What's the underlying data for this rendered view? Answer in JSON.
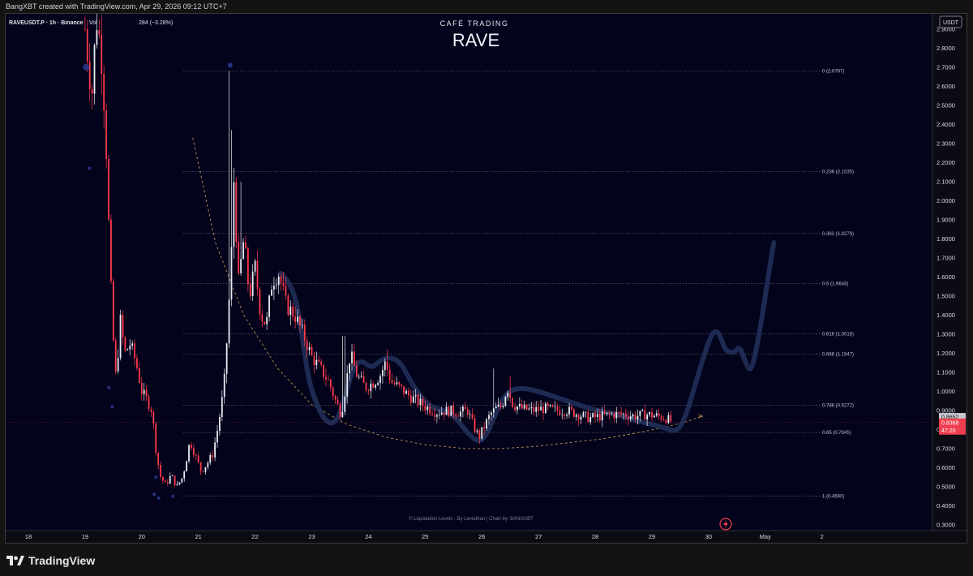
{
  "caption": "BangXBT created with TradingView.com, Apr 29, 2026 09:12 UTC+7",
  "header": {
    "symbol_line": "RAVEUSDT.P · 1h · Binance",
    "vol_label": "Vol",
    "change_tail": "284 (−3.28%)"
  },
  "overlay": {
    "brand": "CAFÉ TRADING",
    "ticker": "RAVE"
  },
  "currency_button": "USDT",
  "credit": "© Liquidation Levels - By Leviathan | Chart by: BANGXBT",
  "footer_brand": "TradingView",
  "colors": {
    "background": "#03031c",
    "up_candle": "#e9ecf2",
    "down_candle": "#ff3b4b",
    "projection": "#1f2c55",
    "fib_lines": "#6f7382",
    "curve": "#c9a34a",
    "last_price_bg": "#ef3e4f",
    "prev_price_bg": "#c8cad1"
  },
  "chart_data": {
    "type": "candlestick",
    "ylim": [
      0.27,
      2.98
    ],
    "x_domain_days": [
      17.6,
      33.95
    ],
    "x_axis_labels": [
      {
        "day": 18,
        "label": "18"
      },
      {
        "day": 19,
        "label": "19"
      },
      {
        "day": 20,
        "label": "20"
      },
      {
        "day": 21,
        "label": "21"
      },
      {
        "day": 22,
        "label": "22"
      },
      {
        "day": 23,
        "label": "23"
      },
      {
        "day": 24,
        "label": "24"
      },
      {
        "day": 25,
        "label": "25"
      },
      {
        "day": 26,
        "label": "26"
      },
      {
        "day": 27,
        "label": "27"
      },
      {
        "day": 28,
        "label": "28"
      },
      {
        "day": 29,
        "label": "29"
      },
      {
        "day": 30,
        "label": "30"
      },
      {
        "day": 31,
        "label": "May"
      },
      {
        "day": 32,
        "label": "2"
      }
    ],
    "y_axis_labels": [
      "0.3000",
      "0.4000",
      "0.5000",
      "0.6000",
      "0.7000",
      "0.8000",
      "0.9000",
      "1.0000",
      "1.1000",
      "1.2000",
      "1.3000",
      "1.4000",
      "1.5000",
      "1.6000",
      "1.7000",
      "1.8000",
      "1.9000",
      "2.0000",
      "2.1000",
      "2.2000",
      "2.3000",
      "2.4000",
      "2.5000",
      "2.6000",
      "2.7000",
      "2.8000",
      "2.9000"
    ],
    "fib_levels": [
      {
        "value": 2.6797,
        "label": "0 (2.6797)"
      },
      {
        "value": 2.1535,
        "label": "0.236 (2.1535)"
      },
      {
        "value": 1.8279,
        "label": "0.382 (1.8279)"
      },
      {
        "value": 1.5648,
        "label": "0.5 (1.5648)"
      },
      {
        "value": 1.3018,
        "label": "0.618 (1.3018)"
      },
      {
        "value": 1.1947,
        "label": "0.666 (1.1947)"
      },
      {
        "value": 0.9272,
        "label": "0.786 (0.9272)"
      },
      {
        "value": 0.7845,
        "label": "0.85 (0.7845)"
      },
      {
        "value": 0.45,
        "label": "1 (0.4500)"
      }
    ],
    "price_tags": [
      {
        "value": 0.8652,
        "label": "0.8652",
        "kind": "prev"
      },
      {
        "value": 0.8368,
        "label": "0.8368",
        "kind": "last",
        "countdown": "47:20"
      }
    ],
    "price_anchors": [
      [
        19.0,
        2.9
      ],
      [
        19.05,
        2.75
      ],
      [
        19.12,
        2.55
      ],
      [
        19.2,
        2.96
      ],
      [
        19.28,
        2.8
      ],
      [
        19.36,
        2.4
      ],
      [
        19.42,
        1.85
      ],
      [
        19.48,
        1.35
      ],
      [
        19.55,
        1.05
      ],
      [
        19.62,
        1.38
      ],
      [
        19.7,
        1.2
      ],
      [
        19.8,
        1.25
      ],
      [
        19.9,
        1.15
      ],
      [
        20.0,
        1.0
      ],
      [
        20.1,
        0.95
      ],
      [
        20.18,
        0.9
      ],
      [
        20.25,
        0.7
      ],
      [
        20.32,
        0.56
      ],
      [
        20.42,
        0.51
      ],
      [
        20.52,
        0.56
      ],
      [
        20.62,
        0.5
      ],
      [
        20.72,
        0.55
      ],
      [
        20.78,
        0.63
      ],
      [
        20.85,
        0.74
      ],
      [
        20.95,
        0.66
      ],
      [
        21.05,
        0.58
      ],
      [
        21.15,
        0.62
      ],
      [
        21.25,
        0.67
      ],
      [
        21.35,
        0.82
      ],
      [
        21.45,
        1.02
      ],
      [
        21.52,
        1.35
      ],
      [
        21.58,
        1.7
      ],
      [
        21.63,
        2.15
      ],
      [
        21.7,
        1.55
      ],
      [
        21.8,
        1.8
      ],
      [
        21.9,
        1.5
      ],
      [
        22.0,
        1.65
      ],
      [
        22.1,
        1.4
      ],
      [
        22.2,
        1.35
      ],
      [
        22.3,
        1.58
      ],
      [
        22.42,
        1.62
      ],
      [
        22.55,
        1.45
      ],
      [
        22.7,
        1.4
      ],
      [
        22.85,
        1.3
      ],
      [
        23.0,
        1.18
      ],
      [
        23.15,
        1.12
      ],
      [
        23.3,
        1.05
      ],
      [
        23.42,
        0.95
      ],
      [
        23.52,
        0.88
      ],
      [
        23.6,
        1.03
      ],
      [
        23.68,
        1.2
      ],
      [
        23.8,
        1.08
      ],
      [
        23.95,
        1.02
      ],
      [
        24.1,
        1.05
      ],
      [
        24.2,
        1.08
      ],
      [
        24.3,
        1.15
      ],
      [
        24.4,
        1.05
      ],
      [
        24.55,
        1.02
      ],
      [
        24.7,
        0.98
      ],
      [
        24.85,
        0.95
      ],
      [
        25.0,
        0.92
      ],
      [
        25.2,
        0.89
      ],
      [
        25.4,
        0.9
      ],
      [
        25.6,
        0.89
      ],
      [
        25.75,
        0.9
      ],
      [
        25.85,
        0.82
      ],
      [
        25.95,
        0.76
      ],
      [
        26.05,
        0.82
      ],
      [
        26.15,
        0.88
      ],
      [
        26.25,
        0.91
      ],
      [
        26.35,
        0.92
      ],
      [
        26.45,
        1.02
      ],
      [
        26.55,
        0.93
      ],
      [
        26.7,
        0.91
      ],
      [
        26.9,
        0.9
      ],
      [
        27.1,
        0.91
      ],
      [
        27.3,
        0.9
      ],
      [
        27.5,
        0.9
      ],
      [
        27.7,
        0.88
      ],
      [
        27.9,
        0.86
      ],
      [
        28.1,
        0.87
      ],
      [
        28.3,
        0.88
      ],
      [
        28.5,
        0.88
      ],
      [
        28.7,
        0.87
      ],
      [
        28.9,
        0.88
      ],
      [
        29.1,
        0.87
      ],
      [
        29.25,
        0.86
      ],
      [
        29.35,
        0.84
      ]
    ],
    "wick_spikes": [
      {
        "day": 19.2,
        "high": 2.98
      },
      {
        "day": 21.55,
        "high": 2.68
      },
      {
        "day": 21.6,
        "high": 2.37
      },
      {
        "day": 21.75,
        "high": 2.1
      },
      {
        "day": 23.56,
        "high": 1.29
      },
      {
        "day": 24.32,
        "high": 1.22
      },
      {
        "day": 26.2,
        "high": 1.12
      },
      {
        "day": 26.5,
        "high": 1.08
      }
    ],
    "projection_path": [
      [
        22.45,
        1.62
      ],
      [
        22.6,
        1.58
      ],
      [
        22.75,
        1.45
      ],
      [
        22.85,
        1.25
      ],
      [
        22.95,
        1.05
      ],
      [
        23.1,
        0.92
      ],
      [
        23.25,
        0.84
      ],
      [
        23.4,
        0.83
      ],
      [
        23.55,
        0.92
      ],
      [
        23.7,
        1.1
      ],
      [
        23.85,
        1.17
      ],
      [
        24.05,
        1.12
      ],
      [
        24.2,
        1.16
      ],
      [
        24.35,
        1.18
      ],
      [
        24.55,
        1.16
      ],
      [
        24.75,
        1.05
      ],
      [
        24.95,
        0.96
      ],
      [
        25.15,
        0.91
      ],
      [
        25.35,
        0.9
      ],
      [
        25.55,
        0.86
      ],
      [
        25.75,
        0.78
      ],
      [
        25.95,
        0.73
      ],
      [
        26.1,
        0.78
      ],
      [
        26.25,
        0.89
      ],
      [
        26.45,
        1.0
      ],
      [
        26.7,
        1.02
      ],
      [
        27.0,
        1.0
      ],
      [
        27.3,
        0.97
      ],
      [
        27.6,
        0.94
      ],
      [
        27.9,
        0.91
      ],
      [
        28.2,
        0.89
      ],
      [
        28.5,
        0.87
      ],
      [
        28.8,
        0.84
      ],
      [
        29.1,
        0.82
      ],
      [
        29.3,
        0.8
      ],
      [
        29.45,
        0.79
      ],
      [
        29.6,
        0.87
      ],
      [
        29.75,
        1.02
      ],
      [
        29.9,
        1.17
      ],
      [
        30.0,
        1.26
      ],
      [
        30.1,
        1.32
      ],
      [
        30.2,
        1.3
      ],
      [
        30.3,
        1.21
      ],
      [
        30.45,
        1.2
      ],
      [
        30.55,
        1.24
      ],
      [
        30.65,
        1.15
      ],
      [
        30.75,
        1.1
      ],
      [
        30.85,
        1.23
      ],
      [
        30.95,
        1.4
      ],
      [
        31.05,
        1.6
      ],
      [
        31.15,
        1.78
      ]
    ],
    "curve_points": [
      [
        20.9,
        2.33
      ],
      [
        21.3,
        1.78
      ],
      [
        21.8,
        1.4
      ],
      [
        22.4,
        1.12
      ],
      [
        23.0,
        0.93
      ],
      [
        23.6,
        0.83
      ],
      [
        24.3,
        0.76
      ],
      [
        25.0,
        0.72
      ],
      [
        25.7,
        0.7
      ],
      [
        26.3,
        0.7
      ],
      [
        26.9,
        0.71
      ],
      [
        27.5,
        0.73
      ],
      [
        28.1,
        0.75
      ],
      [
        28.7,
        0.78
      ],
      [
        29.2,
        0.81
      ],
      [
        29.6,
        0.84
      ],
      [
        29.88,
        0.87
      ]
    ],
    "markers": [
      {
        "day": 19.02,
        "value": 2.7,
        "r": 4
      },
      {
        "day": 19.08,
        "value": 2.17,
        "r": 2
      },
      {
        "day": 19.42,
        "value": 1.02,
        "r": 2
      },
      {
        "day": 19.48,
        "value": 0.92,
        "r": 2
      },
      {
        "day": 20.22,
        "value": 0.46,
        "r": 2
      },
      {
        "day": 20.3,
        "value": 0.44,
        "r": 2
      },
      {
        "day": 20.55,
        "value": 0.45,
        "r": 2
      },
      {
        "day": 20.25,
        "value": 0.55,
        "r": 2
      },
      {
        "day": 21.56,
        "value": 2.71,
        "r": 3
      }
    ]
  }
}
